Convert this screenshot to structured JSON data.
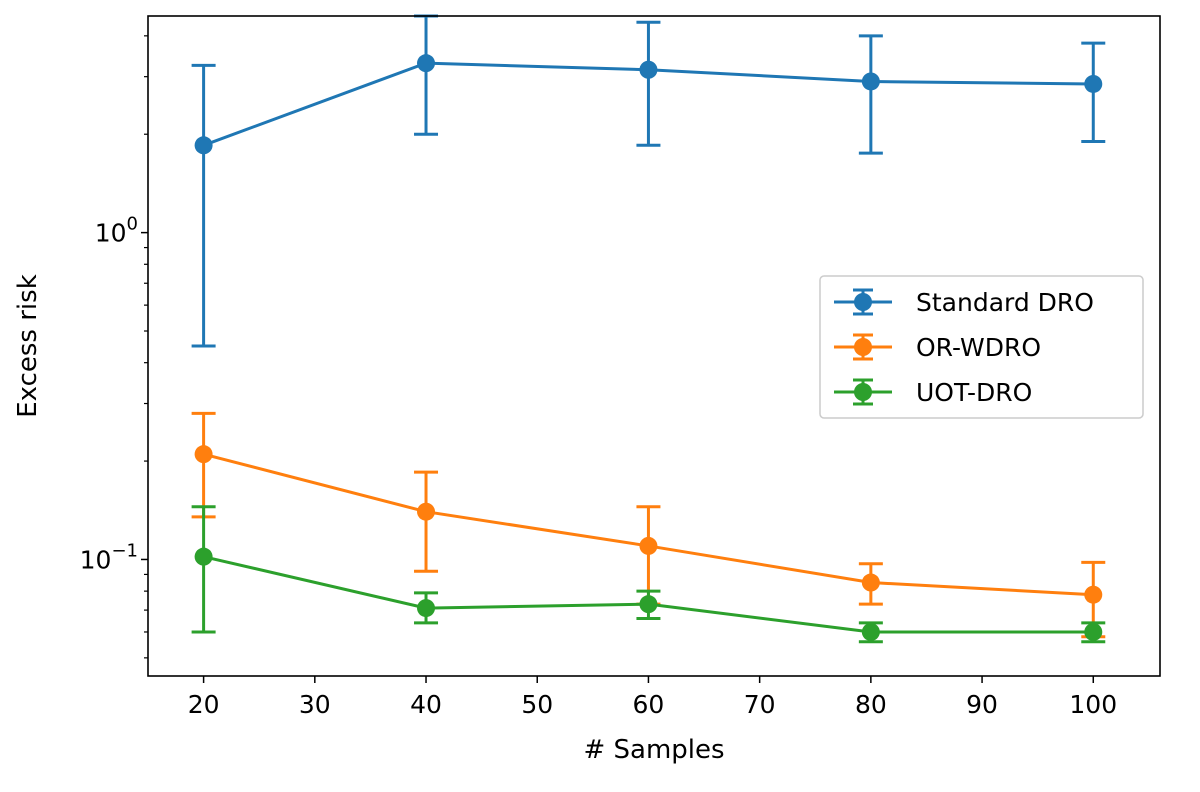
{
  "chart_data": {
    "type": "line",
    "title": "",
    "xlabel": "# Samples",
    "ylabel": "Excess risk",
    "x": [
      20,
      40,
      60,
      80,
      100
    ],
    "xlim": [
      15,
      106
    ],
    "xticks": [
      20,
      30,
      40,
      50,
      60,
      70,
      80,
      90,
      100
    ],
    "yscale": "log",
    "ylim": [
      0.044,
      4.6
    ],
    "yticks": [
      {
        "value": 1,
        "base": "10",
        "exp": "0"
      },
      {
        "value": 0.1,
        "base": "10",
        "exp": "−1"
      }
    ],
    "grid": false,
    "legend_position": "center-right",
    "series": [
      {
        "name": "Standard DRO",
        "color": "#1f77b4",
        "values": [
          1.85,
          3.3,
          3.15,
          2.9,
          2.85
        ],
        "err_low": [
          0.45,
          2.0,
          1.85,
          1.75,
          1.9
        ],
        "err_high": [
          3.25,
          4.6,
          4.4,
          4.0,
          3.8
        ]
      },
      {
        "name": "OR-WDRO",
        "color": "#ff7f0e",
        "values": [
          0.21,
          0.14,
          0.11,
          0.085,
          0.078
        ],
        "err_low": [
          0.135,
          0.092,
          0.073,
          0.073,
          0.058
        ],
        "err_high": [
          0.28,
          0.185,
          0.145,
          0.097,
          0.098
        ]
      },
      {
        "name": "UOT-DRO",
        "color": "#2ca02c",
        "values": [
          0.102,
          0.071,
          0.073,
          0.06,
          0.06
        ],
        "err_low": [
          0.06,
          0.064,
          0.066,
          0.056,
          0.056
        ],
        "err_high": [
          0.145,
          0.079,
          0.08,
          0.064,
          0.064
        ]
      }
    ]
  }
}
